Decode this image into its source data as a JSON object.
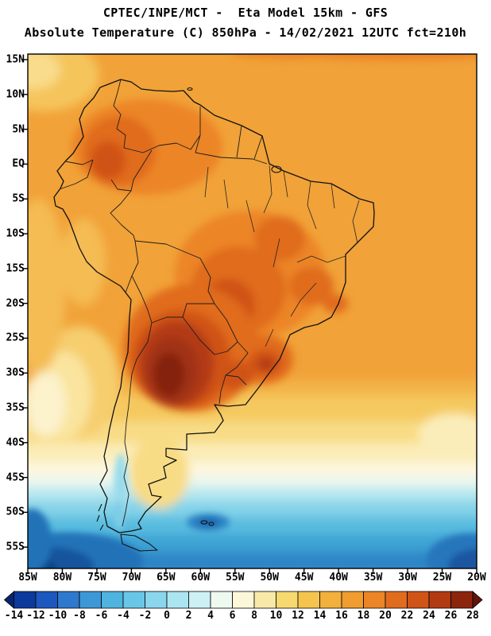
{
  "header": {
    "line1": "CPTEC/INPE/MCT -  Eta Model 15km - GFS",
    "line2": "Absolute Temperature (C) 850hPa - 14/02/2021 12UTC fct=210h"
  },
  "axes": {
    "lat_labels": [
      "15N",
      "10N",
      "5N",
      "EQ",
      "5S",
      "10S",
      "15S",
      "20S",
      "25S",
      "30S",
      "35S",
      "40S",
      "45S",
      "50S",
      "55S"
    ],
    "lon_labels": [
      "85W",
      "80W",
      "75W",
      "70W",
      "65W",
      "60W",
      "55W",
      "50W",
      "45W",
      "40W",
      "35W",
      "30W",
      "25W",
      "20W"
    ]
  },
  "colorbar": {
    "tick_labels": [
      "-14",
      "-12",
      "-10",
      "-8",
      "-6",
      "-4",
      "-2",
      "0",
      "2",
      "4",
      "6",
      "8",
      "10",
      "12",
      "14",
      "16",
      "18",
      "20",
      "22",
      "24",
      "26",
      "28"
    ],
    "colors": [
      "#08246C",
      "#0B3A9C",
      "#1D57C0",
      "#2E78CE",
      "#3D98D8",
      "#4FB3DF",
      "#69C6E7",
      "#8AD6ED",
      "#ACE5F2",
      "#CDF0F5",
      "#EEF9F0",
      "#FCF7D8",
      "#F9E9A8",
      "#F6D96F",
      "#F4C44F",
      "#F2B03C",
      "#F09C2F",
      "#EC8526",
      "#E06C1E",
      "#D05317",
      "#B23A12",
      "#8C250D",
      "#611409"
    ]
  },
  "chart_data": {
    "type": "heatmap",
    "title": "Absolute Temperature (C) 850hPa",
    "source": "CPTEC/INPE/MCT",
    "model": "Eta Model 15km - GFS",
    "valid": "14/02/2021 12UTC fct=210h",
    "units": "C",
    "x_axis": {
      "label": "longitude",
      "ticks": [
        "85W",
        "80W",
        "75W",
        "70W",
        "65W",
        "60W",
        "55W",
        "50W",
        "45W",
        "40W",
        "35W",
        "30W",
        "25W",
        "20W"
      ]
    },
    "y_axis": {
      "label": "latitude",
      "ticks": [
        "15N",
        "10N",
        "5N",
        "EQ",
        "5S",
        "10S",
        "15S",
        "20S",
        "25S",
        "30S",
        "35S",
        "40S",
        "45S",
        "50S",
        "55S"
      ]
    },
    "scale": {
      "min": -14,
      "max": 28,
      "step": 2,
      "boundaries": [
        -14,
        -12,
        -10,
        -8,
        -6,
        -4,
        -2,
        0,
        2,
        4,
        6,
        8,
        10,
        12,
        14,
        16,
        18,
        20,
        22,
        24,
        26,
        28
      ]
    },
    "field_summary": [
      {
        "region": "tropical South America and adjacent oceans (15N-30S)",
        "approx_temp_c": "16 to 20"
      },
      {
        "region": "interior Colombia / Venezuela",
        "approx_temp_c": "20 to 24"
      },
      {
        "region": "central Brazil",
        "approx_temp_c": "20 to 24"
      },
      {
        "region": "warm core over Paraguay / northern Argentina (22S-32S)",
        "approx_temp_c": "24 to 28"
      },
      {
        "region": "secondary warm patch over southeast Brazil",
        "approx_temp_c": "22 to 26"
      },
      {
        "region": "transition band 35S-45S",
        "approx_temp_c": "2 to 14"
      },
      {
        "region": "Southern Ocean south of 45S",
        "approx_temp_c": "-4 to 2"
      },
      {
        "region": "far southwest and southeast corners south of 52S",
        "approx_temp_c": "-10 to -4"
      }
    ],
    "legend_position": "bottom",
    "grid": false
  }
}
